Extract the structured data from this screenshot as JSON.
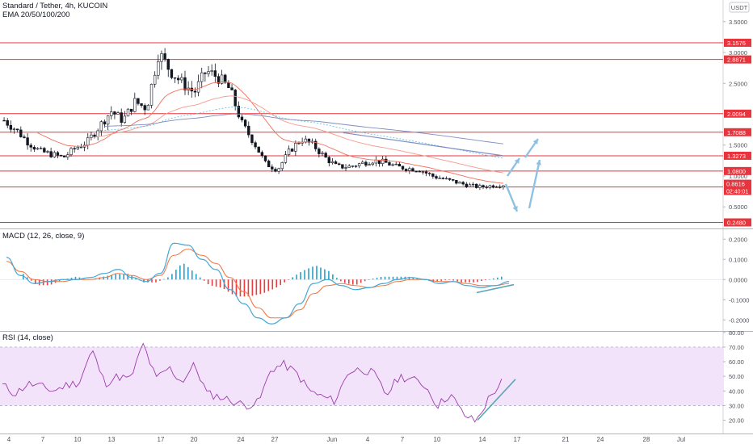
{
  "header": {
    "symbol": "Standard / Tether, 4h, KUCOIN",
    "ema": "EMA 20/50/100/200",
    "currency": "USDT"
  },
  "panes": {
    "macd_title": "MACD (12, 26, close, 9)",
    "rsi_title": "RSI (14, close)"
  },
  "colors": {
    "up": "#131722",
    "down": "#131722",
    "hline": "#e8353d",
    "tag_bg": "#e8353d",
    "macd": "#45a8d6",
    "signal": "#f27a45",
    "hist_up": "#2aa0c8",
    "hist_down": "#ef3b3b",
    "rsi": "#9c3dad",
    "rsi_band": "#f3e3fa",
    "trend": "#5aa6b5",
    "arrow": "#8fc2e2"
  },
  "chart_data": [
    {
      "type": "candlestick",
      "title": "Standard / Tether, 4h, KUCOIN",
      "overlays": [
        "EMA 20",
        "EMA 50",
        "EMA 100",
        "EMA 200"
      ],
      "price_axis_ticks": [
        "3.5000",
        "3.0000",
        "2.5000",
        "1.5000",
        "1.0000",
        "0.5000"
      ],
      "ylim": [
        0.15,
        3.85
      ],
      "horizontal_levels": [
        "3.1576",
        "2.8871",
        "2.0094",
        "1.7088",
        "1.3273",
        "1.0800",
        "0.8225",
        "0.2480"
      ],
      "last_price": "0.8616",
      "countdown": "02:40:01",
      "x_ticks": [
        "4",
        "7",
        "10",
        "13",
        "17",
        "20",
        "24",
        "27",
        "Jun",
        "4",
        "7",
        "10",
        "14",
        "17",
        "21",
        "24",
        "28",
        "Jul"
      ],
      "close_path": [
        1.9,
        1.75,
        1.55,
        1.4,
        1.35,
        1.3,
        1.45,
        1.55,
        1.8,
        2.05,
        1.9,
        2.2,
        2.1,
        3.0,
        2.7,
        2.5,
        2.35,
        2.7,
        2.6,
        2.4,
        1.85,
        1.55,
        1.2,
        1.1,
        1.4,
        1.6,
        1.5,
        1.3,
        1.15,
        1.15,
        1.2,
        1.25,
        1.22,
        1.15,
        1.12,
        1.1,
        1.0,
        0.95,
        0.9,
        0.85,
        0.82,
        0.84,
        0.86
      ]
    },
    {
      "type": "line",
      "title": "MACD (12, 26, close, 9)",
      "axis_ticks": [
        "0.2000",
        "0.1000",
        "0.0000",
        "-0.1000",
        "-0.2000"
      ],
      "ylim": [
        -0.255,
        0.245
      ],
      "series": [
        {
          "name": "MACD",
          "values": [
            0.11,
            0.02,
            -0.02,
            -0.01,
            0.0,
            0.0,
            0.01,
            0.03,
            0.05,
            0.01,
            -0.01,
            0.03,
            0.18,
            0.17,
            0.1,
            0.05,
            -0.05,
            -0.12,
            -0.19,
            -0.22,
            -0.19,
            -0.12,
            -0.02,
            0.0,
            -0.03,
            -0.05,
            -0.04,
            -0.02,
            0.0,
            0.01,
            0.0,
            -0.02,
            -0.01,
            -0.03,
            -0.04,
            -0.03,
            -0.01
          ]
        },
        {
          "name": "Signal",
          "values": [
            0.09,
            0.04,
            0.0,
            -0.01,
            -0.01,
            0.0,
            0.0,
            0.01,
            0.03,
            0.02,
            0.0,
            0.02,
            0.12,
            0.15,
            0.12,
            0.08,
            0.01,
            -0.06,
            -0.14,
            -0.19,
            -0.19,
            -0.15,
            -0.07,
            -0.03,
            -0.02,
            -0.03,
            -0.04,
            -0.03,
            -0.01,
            0.0,
            0.0,
            -0.01,
            -0.01,
            -0.02,
            -0.03,
            -0.03,
            -0.02
          ]
        }
      ]
    },
    {
      "type": "line",
      "title": "RSI (14, close)",
      "axis_ticks": [
        "80.00",
        "70.00",
        "60.00",
        "50.00",
        "40.00",
        "30.00",
        "20.00"
      ],
      "ylim": [
        12,
        81
      ],
      "band": [
        30,
        70
      ],
      "series": [
        {
          "name": "RSI",
          "values": [
            44,
            38,
            45,
            43,
            40,
            44,
            46,
            68,
            45,
            50,
            48,
            72,
            48,
            56,
            46,
            58,
            38,
            36,
            33,
            30,
            32,
            55,
            58,
            52,
            40,
            36,
            33,
            53,
            55,
            52,
            37,
            50,
            48,
            44,
            30,
            38,
            24,
            19,
            35,
            46
          ]
        }
      ]
    }
  ]
}
